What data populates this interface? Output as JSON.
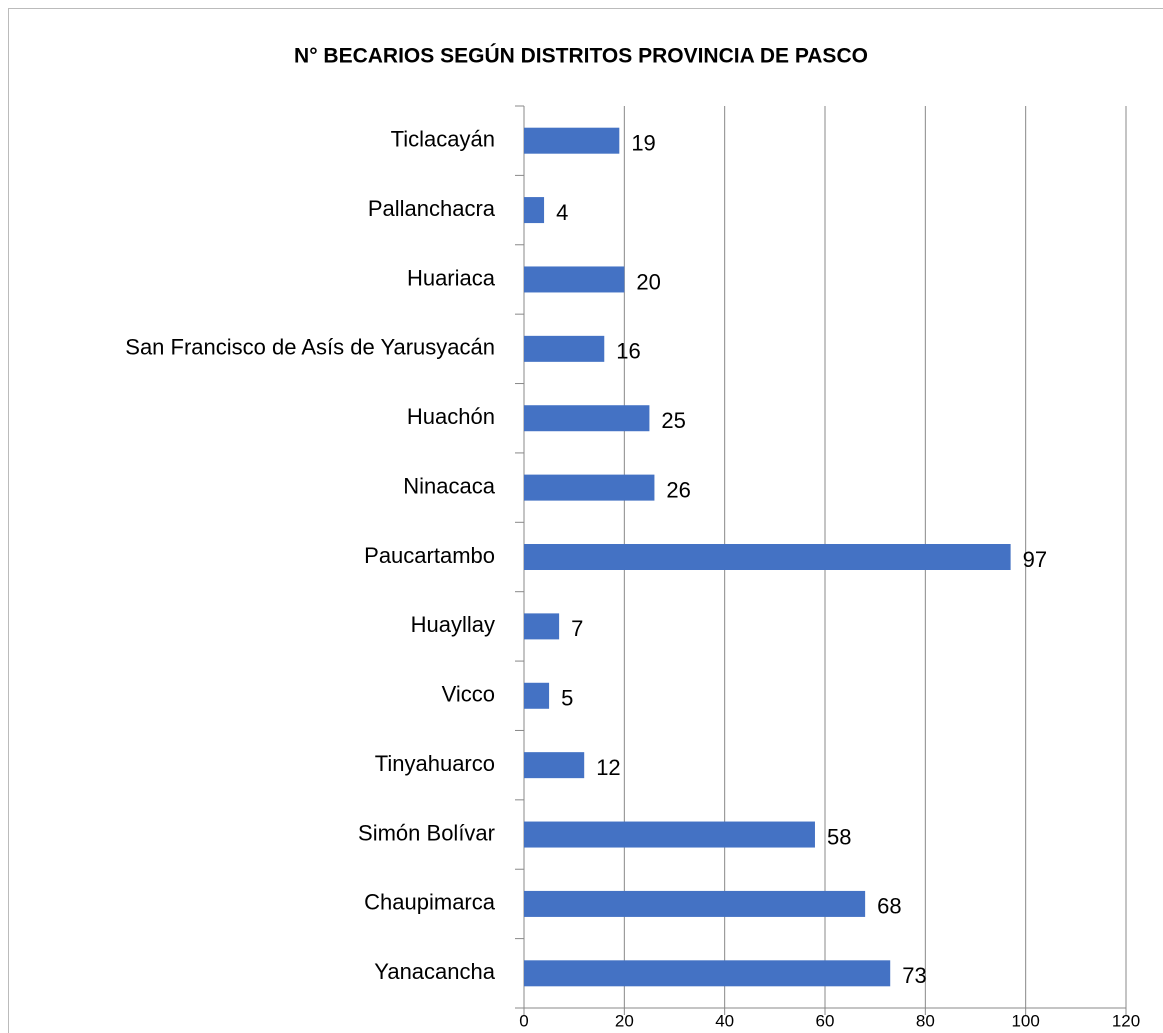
{
  "chart_data": {
    "type": "bar",
    "orientation": "horizontal",
    "title": "N° BECARIOS SEGÚN DISTRITOS PROVINCIA DE PASCO",
    "categories": [
      "Yanacancha",
      "Chaupimarca",
      "Simón Bolívar",
      "Tinyahuarco",
      "Vicco",
      "Huayllay",
      "Paucartambo",
      "Ninacaca",
      "Huachón",
      "San Francisco de Asís de Yarusyacán",
      "Huariaca",
      "Pallanchacra",
      "Ticlacayán"
    ],
    "values": [
      73,
      68,
      58,
      12,
      5,
      7,
      97,
      26,
      25,
      16,
      20,
      4,
      19
    ],
    "color": "#4472c4",
    "xlim": [
      0,
      120
    ],
    "xticks": [
      0,
      20,
      40,
      60,
      80,
      100,
      120
    ],
    "grid": true
  }
}
